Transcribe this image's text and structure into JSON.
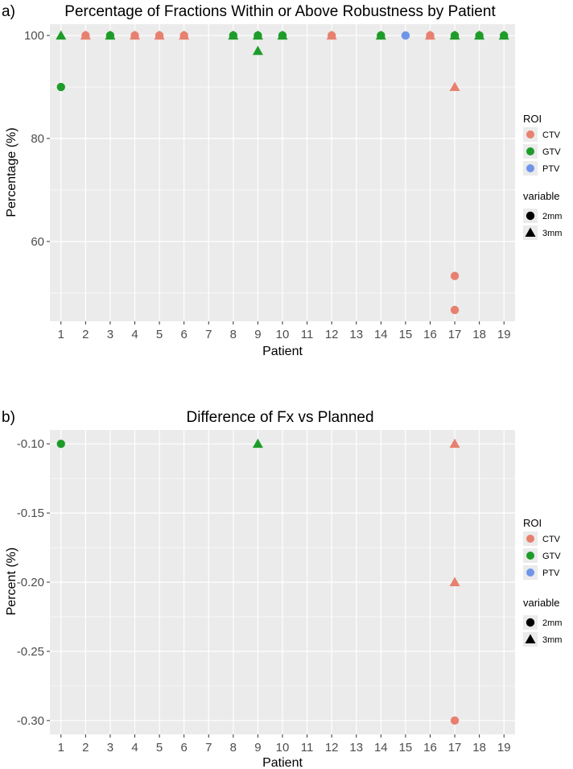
{
  "colors": {
    "CTV": "#E8806F",
    "GTV": "#1E9C2A",
    "PTV": "#6E95E8",
    "panel_bg": "#EBEBEB",
    "grid": "#FFFFFF"
  },
  "chart_data": [
    {
      "type": "scatter",
      "panel_label": "a)",
      "title": "Percentage of Fractions Within or Above Robustness by Patient",
      "xlabel": "Patient",
      "ylabel": "Percentage (%)",
      "x_ticks": [
        "1",
        "2",
        "3",
        "4",
        "5",
        "6",
        "7",
        "8",
        "9",
        "10",
        "11",
        "12",
        "13",
        "14",
        "15",
        "16",
        "17",
        "18",
        "19"
      ],
      "y_ticks": [
        "60",
        "80",
        "100"
      ],
      "xlim": [
        0.55,
        19.45
      ],
      "ylim": [
        44.5,
        102.2
      ],
      "grid": true,
      "legend_position": "right",
      "legend": {
        "roi_title": "ROI",
        "roi_items": [
          "CTV",
          "GTV",
          "PTV"
        ],
        "variable_title": "variable",
        "variable_items": [
          "2mm",
          "3mm"
        ]
      },
      "points": [
        {
          "x": 1,
          "y": 90,
          "roi": "GTV",
          "variable": "2mm"
        },
        {
          "x": 1,
          "y": 100,
          "roi": "GTV",
          "variable": "3mm"
        },
        {
          "x": 2,
          "y": 100,
          "roi": "CTV",
          "variable": "2mm"
        },
        {
          "x": 2,
          "y": 100,
          "roi": "CTV",
          "variable": "3mm"
        },
        {
          "x": 3,
          "y": 100,
          "roi": "GTV",
          "variable": "2mm"
        },
        {
          "x": 3,
          "y": 100,
          "roi": "GTV",
          "variable": "3mm"
        },
        {
          "x": 4,
          "y": 100,
          "roi": "CTV",
          "variable": "2mm"
        },
        {
          "x": 4,
          "y": 100,
          "roi": "CTV",
          "variable": "3mm"
        },
        {
          "x": 5,
          "y": 100,
          "roi": "CTV",
          "variable": "2mm"
        },
        {
          "x": 5,
          "y": 100,
          "roi": "CTV",
          "variable": "3mm"
        },
        {
          "x": 6,
          "y": 100,
          "roi": "CTV",
          "variable": "2mm"
        },
        {
          "x": 6,
          "y": 100,
          "roi": "CTV",
          "variable": "3mm"
        },
        {
          "x": 8,
          "y": 100,
          "roi": "GTV",
          "variable": "2mm"
        },
        {
          "x": 8,
          "y": 100,
          "roi": "GTV",
          "variable": "3mm"
        },
        {
          "x": 9,
          "y": 100,
          "roi": "GTV",
          "variable": "2mm"
        },
        {
          "x": 9,
          "y": 100,
          "roi": "GTV",
          "variable": "3mm"
        },
        {
          "x": 9,
          "y": 97,
          "roi": "GTV",
          "variable": "3mm"
        },
        {
          "x": 10,
          "y": 100,
          "roi": "GTV",
          "variable": "2mm"
        },
        {
          "x": 10,
          "y": 100,
          "roi": "GTV",
          "variable": "3mm"
        },
        {
          "x": 12,
          "y": 100,
          "roi": "CTV",
          "variable": "2mm"
        },
        {
          "x": 12,
          "y": 100,
          "roi": "CTV",
          "variable": "3mm"
        },
        {
          "x": 14,
          "y": 100,
          "roi": "GTV",
          "variable": "2mm"
        },
        {
          "x": 14,
          "y": 100,
          "roi": "GTV",
          "variable": "3mm"
        },
        {
          "x": 15,
          "y": 100,
          "roi": "PTV",
          "variable": "2mm"
        },
        {
          "x": 16,
          "y": 100,
          "roi": "CTV",
          "variable": "2mm"
        },
        {
          "x": 16,
          "y": 100,
          "roi": "CTV",
          "variable": "3mm"
        },
        {
          "x": 17,
          "y": 100,
          "roi": "GTV",
          "variable": "2mm"
        },
        {
          "x": 17,
          "y": 100,
          "roi": "GTV",
          "variable": "3mm"
        },
        {
          "x": 17,
          "y": 90,
          "roi": "CTV",
          "variable": "3mm"
        },
        {
          "x": 17,
          "y": 53.3,
          "roi": "CTV",
          "variable": "2mm"
        },
        {
          "x": 17,
          "y": 46.7,
          "roi": "CTV",
          "variable": "2mm"
        },
        {
          "x": 18,
          "y": 100,
          "roi": "GTV",
          "variable": "2mm"
        },
        {
          "x": 18,
          "y": 100,
          "roi": "GTV",
          "variable": "3mm"
        },
        {
          "x": 19,
          "y": 100,
          "roi": "GTV",
          "variable": "2mm"
        },
        {
          "x": 19,
          "y": 100,
          "roi": "GTV",
          "variable": "3mm"
        }
      ]
    },
    {
      "type": "scatter",
      "panel_label": "b)",
      "title": "Difference of Fx vs Planned",
      "xlabel": "Patient",
      "ylabel": "Percent (%)",
      "x_ticks": [
        "1",
        "2",
        "3",
        "4",
        "5",
        "6",
        "7",
        "8",
        "9",
        "10",
        "11",
        "12",
        "13",
        "14",
        "15",
        "16",
        "17",
        "18",
        "19"
      ],
      "y_ticks": [
        "-0.30",
        "-0.25",
        "-0.20",
        "-0.15",
        "-0.10"
      ],
      "xlim": [
        0.55,
        19.45
      ],
      "ylim": [
        -0.31,
        -0.09
      ],
      "grid": true,
      "legend_position": "right",
      "legend": {
        "roi_title": "ROI",
        "roi_items": [
          "CTV",
          "GTV",
          "PTV"
        ],
        "variable_title": "variable",
        "variable_items": [
          "2mm",
          "3mm"
        ]
      },
      "points": [
        {
          "x": 1,
          "y": -0.1,
          "roi": "GTV",
          "variable": "2mm"
        },
        {
          "x": 9,
          "y": -0.1,
          "roi": "GTV",
          "variable": "3mm"
        },
        {
          "x": 17,
          "y": -0.1,
          "roi": "CTV",
          "variable": "3mm"
        },
        {
          "x": 17,
          "y": -0.2,
          "roi": "CTV",
          "variable": "3mm"
        },
        {
          "x": 17,
          "y": -0.3,
          "roi": "CTV",
          "variable": "2mm"
        }
      ]
    }
  ]
}
